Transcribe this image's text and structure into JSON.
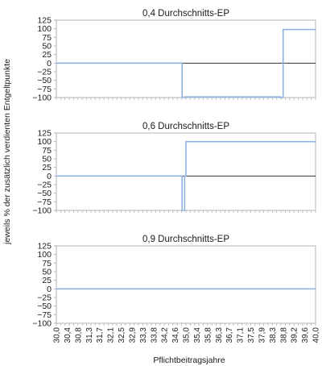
{
  "figure": {
    "ylabel": "jeweils % der zusätzlich verdienten Entgeltpunkte",
    "xlabel": "Pflichtbeitragsjahre"
  },
  "colors": {
    "series": "#8fb4e3",
    "zero_line": "#333333",
    "frame": "#b3b3b3",
    "text": "#1a1a1a"
  },
  "chart_data": [
    {
      "type": "line",
      "title": "0,4 Durchschnitts-EP",
      "ylim": [
        -100,
        125
      ],
      "yticks": [
        125,
        100,
        75,
        50,
        25,
        0,
        -25,
        -50,
        -75,
        -100
      ],
      "xlim": [
        30.0,
        40.0
      ],
      "grid": false,
      "series": [
        {
          "x": [
            30.0,
            34.85,
            34.85,
            34.95,
            34.95,
            38.65,
            38.65,
            38.75,
            38.75,
            40.0
          ],
          "y": [
            0,
            0,
            -100,
            -100,
            -98,
            -98,
            -100,
            -100,
            98,
            98
          ]
        }
      ]
    },
    {
      "type": "line",
      "title": "0,6 Durchschnitts-EP",
      "ylim": [
        -100,
        125
      ],
      "yticks": [
        125,
        100,
        75,
        50,
        25,
        0,
        -25,
        -50,
        -75,
        -100
      ],
      "xlim": [
        30.0,
        40.0
      ],
      "grid": false,
      "series": [
        {
          "x": [
            30.0,
            34.85,
            34.85,
            34.95,
            34.95,
            35.0,
            35.0,
            40.0
          ],
          "y": [
            0,
            0,
            -100,
            -100,
            0,
            0,
            100,
            100
          ]
        }
      ]
    },
    {
      "type": "line",
      "title": "0,9 Durchschnitts-EP",
      "ylim": [
        -100,
        125
      ],
      "yticks": [
        125,
        100,
        75,
        50,
        25,
        0,
        -25,
        -50,
        -75,
        -100
      ],
      "xlim": [
        30.0,
        40.0
      ],
      "xticks": [
        "30,0",
        "30,4",
        "30,8",
        "31,3",
        "31,7",
        "32,1",
        "32,5",
        "32,9",
        "33,3",
        "33,8",
        "34,2",
        "34,6",
        "35,0",
        "35,4",
        "35,8",
        "36,3",
        "36,7",
        "37,1",
        "37,5",
        "37,9",
        "38,3",
        "38,8",
        "39,2",
        "39,6",
        "40,0"
      ],
      "grid": false,
      "series": [
        {
          "x": [
            30.0,
            40.0
          ],
          "y": [
            0,
            0
          ]
        }
      ]
    }
  ]
}
